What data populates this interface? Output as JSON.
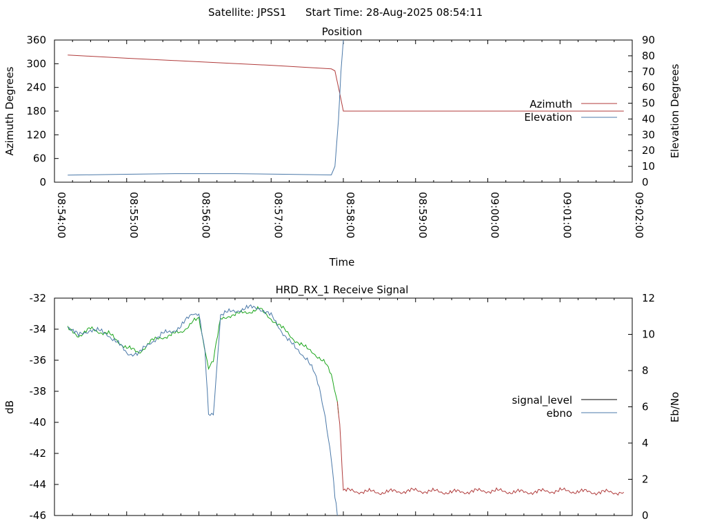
{
  "header": {
    "satellite_label": "Satellite: JPSS1",
    "start_label": "Start Time: 28-Aug-2025 08:54:11"
  },
  "colors": {
    "azimuth": "#b03a3a",
    "elevation": "#4a78a8",
    "signal_low": "#b03a3a",
    "signal_high": "#1aa51a",
    "ebno": "#4a78a8",
    "legend_signal": "#000000"
  },
  "chart_data": [
    {
      "type": "line",
      "title": "Position",
      "xlabel": "Time",
      "ylabel": "Azimuth Degrees",
      "y2label": "Elevation Degrees",
      "xlim": [
        "08:54:00",
        "09:02:00"
      ],
      "ylim": [
        0,
        360
      ],
      "y2lim": [
        0,
        90
      ],
      "x_ticks": [
        "08:54:00",
        "08:55:00",
        "08:56:00",
        "08:57:00",
        "08:58:00",
        "08:59:00",
        "09:00:00",
        "09:01:00",
        "09:02:00"
      ],
      "y_ticks": [
        0,
        60,
        120,
        180,
        240,
        300,
        360
      ],
      "y2_ticks": [
        0,
        10,
        20,
        30,
        40,
        50,
        60,
        70,
        80,
        90
      ],
      "legend_position": "right",
      "series": [
        {
          "name": "Azimuth",
          "axis": "y",
          "x": [
            "08:54:11",
            "08:55:00",
            "08:56:00",
            "08:57:00",
            "08:57:50",
            "08:57:53",
            "08:57:57",
            "08:58:00",
            "08:58:30",
            "09:00:00",
            "09:01:30",
            "09:01:53"
          ],
          "y": [
            322,
            314,
            305,
            296,
            287,
            282,
            225,
            180,
            180,
            180,
            180,
            180
          ]
        },
        {
          "name": "Elevation",
          "axis": "y2",
          "x": [
            "08:54:11",
            "08:55:00",
            "08:55:40",
            "08:56:30",
            "08:57:10",
            "08:57:50",
            "08:57:53",
            "08:57:56",
            "08:57:58",
            "08:58:00"
          ],
          "y": [
            4.5,
            5.0,
            5.4,
            5.4,
            5.0,
            4.6,
            10,
            40,
            70,
            90
          ]
        }
      ]
    },
    {
      "type": "line",
      "title": "HRD_RX_1 Receive Signal",
      "ylabel": "dB",
      "y2label": "Eb/No",
      "xlim": [
        "08:54:00",
        "09:02:00"
      ],
      "ylim": [
        -46,
        -32
      ],
      "y2lim": [
        0,
        12
      ],
      "y_ticks": [
        -46,
        -44,
        -42,
        -40,
        -38,
        -36,
        -34,
        -32
      ],
      "y2_ticks": [
        0,
        2,
        4,
        6,
        8,
        10,
        12
      ],
      "legend_position": "right",
      "series": [
        {
          "name": "signal_level",
          "axis": "y",
          "x": [
            "08:54:11",
            "08:54:20",
            "08:54:30",
            "08:54:45",
            "08:55:00",
            "08:55:10",
            "08:55:20",
            "08:55:30",
            "08:55:45",
            "08:55:55",
            "08:56:00",
            "08:56:08",
            "08:56:12",
            "08:56:18",
            "08:56:25",
            "08:56:35",
            "08:56:50",
            "08:57:00",
            "08:57:10",
            "08:57:20",
            "08:57:30",
            "08:57:35",
            "08:57:40",
            "08:57:45",
            "08:57:50",
            "08:57:55",
            "08:57:57",
            "08:58:00",
            "08:58:30",
            "08:59:00",
            "08:59:30",
            "09:00:00",
            "09:00:30",
            "09:01:00",
            "09:01:30",
            "09:01:53"
          ],
          "y": [
            -34.0,
            -34.4,
            -34.0,
            -34.3,
            -35.2,
            -35.5,
            -34.8,
            -34.5,
            -34.2,
            -33.5,
            -33.4,
            -36.4,
            -36.0,
            -33.4,
            -33.1,
            -33.0,
            -32.7,
            -33.3,
            -34.0,
            -34.7,
            -35.3,
            -35.5,
            -35.8,
            -36.2,
            -37.0,
            -38.6,
            -40.0,
            -44.4,
            -44.5,
            -44.4,
            -44.5,
            -44.4,
            -44.5,
            -44.4,
            -44.5,
            -44.5
          ]
        },
        {
          "name": "ebno",
          "axis": "y2",
          "x": [
            "08:54:11",
            "08:54:20",
            "08:54:30",
            "08:54:45",
            "08:55:00",
            "08:55:10",
            "08:55:20",
            "08:55:30",
            "08:55:45",
            "08:55:55",
            "08:56:00",
            "08:56:05",
            "08:56:08",
            "08:56:12",
            "08:56:18",
            "08:56:25",
            "08:56:35",
            "08:56:50",
            "08:57:00",
            "08:57:10",
            "08:57:20",
            "08:57:30",
            "08:57:35",
            "08:57:40",
            "08:57:45",
            "08:57:50",
            "08:57:53",
            "08:57:55"
          ],
          "y": [
            10.5,
            9.9,
            10.3,
            10.0,
            9.0,
            8.9,
            9.6,
            10.0,
            10.4,
            11.2,
            11.2,
            9.0,
            5.5,
            5.6,
            11.1,
            11.2,
            11.4,
            11.5,
            11.0,
            10.1,
            9.2,
            8.7,
            8.0,
            7.0,
            5.5,
            3.2,
            1.0,
            0.0
          ]
        }
      ]
    }
  ]
}
